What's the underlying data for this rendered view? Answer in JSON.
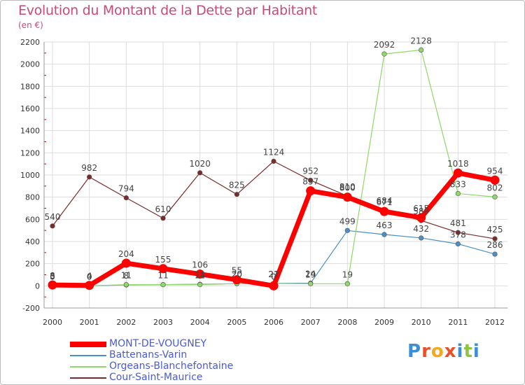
{
  "title": "Evolution du Montant de la Dette par Habitant",
  "subtitle": "(en €)",
  "logo": {
    "letters": [
      "P",
      "r",
      "o",
      "x",
      "i",
      "t",
      "i"
    ],
    "colors": [
      "#3a8fd8",
      "#e8502a",
      "#f5a81c",
      "#e8502a",
      "#3a8fd8",
      "#8cc63f",
      "#3a8fd8"
    ]
  },
  "colors": {
    "title": "#c84a7a",
    "grid": "#dddddd",
    "axis_text": "#333333",
    "tick_mark": "#cc0000"
  },
  "chart_data": {
    "type": "line",
    "title": "Evolution du Montant de la Dette par Habitant",
    "subtitle": "(en €)",
    "x": [
      "2000",
      "2001",
      "2002",
      "2003",
      "2004",
      "2005",
      "2006",
      "2007",
      "2008",
      "2009",
      "2010",
      "2011",
      "2012"
    ],
    "ylim": [
      -200,
      2200
    ],
    "yticks": [
      "-200",
      "0",
      "200",
      "400",
      "600",
      "800",
      "1000",
      "1200",
      "1400",
      "1600",
      "1800",
      "2000",
      "2200"
    ],
    "grid": true,
    "legend_position": "bottom-left",
    "series": [
      {
        "name": "Cour-Saint-Maurice",
        "color": "#7a2a2a",
        "values": [
          540,
          982,
          794,
          610,
          1020,
          825,
          1124,
          952,
          810,
          684,
          589,
          481,
          425
        ],
        "labels": [
          "540",
          "982",
          "794",
          "610",
          "1020",
          "825",
          "1124",
          "952",
          "810",
          "684",
          "589",
          "481",
          "425"
        ]
      },
      {
        "name": "Battenans-Varin",
        "color": "#4a90c8",
        "values": [
          3,
          0,
          8,
          11,
          14,
          20,
          22,
          24,
          499,
          463,
          432,
          378,
          286
        ],
        "labels": [
          "3",
          "0",
          "8",
          "11",
          "14",
          "20",
          "22",
          "24",
          "499",
          "463",
          "432",
          "378",
          "286"
        ]
      },
      {
        "name": "Orgeans-Blanchefontaine",
        "color": "#8fd86a",
        "values": [
          0,
          0,
          11,
          11,
          11,
          20,
          21,
          19,
          19,
          2092,
          2128,
          833,
          802
        ],
        "labels": [
          "0",
          "0",
          "11",
          "11",
          "11",
          "20",
          "21",
          "19",
          "19",
          "2092",
          "2128",
          "833",
          "802"
        ]
      },
      {
        "name": "MONT-DE-VOUGNEY",
        "color": "#ff0000",
        "values": [
          8,
          4,
          204,
          155,
          106,
          55,
          0,
          857,
          800,
          671,
          615,
          1018,
          954
        ],
        "labels": [
          "8",
          "4",
          "204",
          "155",
          "106",
          "55",
          "0",
          "857",
          "800",
          "671",
          "615",
          "1018",
          "954"
        ]
      }
    ],
    "legend": [
      {
        "name": "MONT-DE-VOUGNEY",
        "color": "#ff0000",
        "text_color": "#4a5ad8"
      },
      {
        "name": "Battenans-Varin",
        "color": "#4a90c8",
        "text_color": "#4a5ad8"
      },
      {
        "name": "Orgeans-Blanchefontaine",
        "color": "#8fd86a",
        "text_color": "#4a5ad8"
      },
      {
        "name": "Cour-Saint-Maurice",
        "color": "#7a2a2a",
        "text_color": "#4a5ad8"
      }
    ]
  }
}
